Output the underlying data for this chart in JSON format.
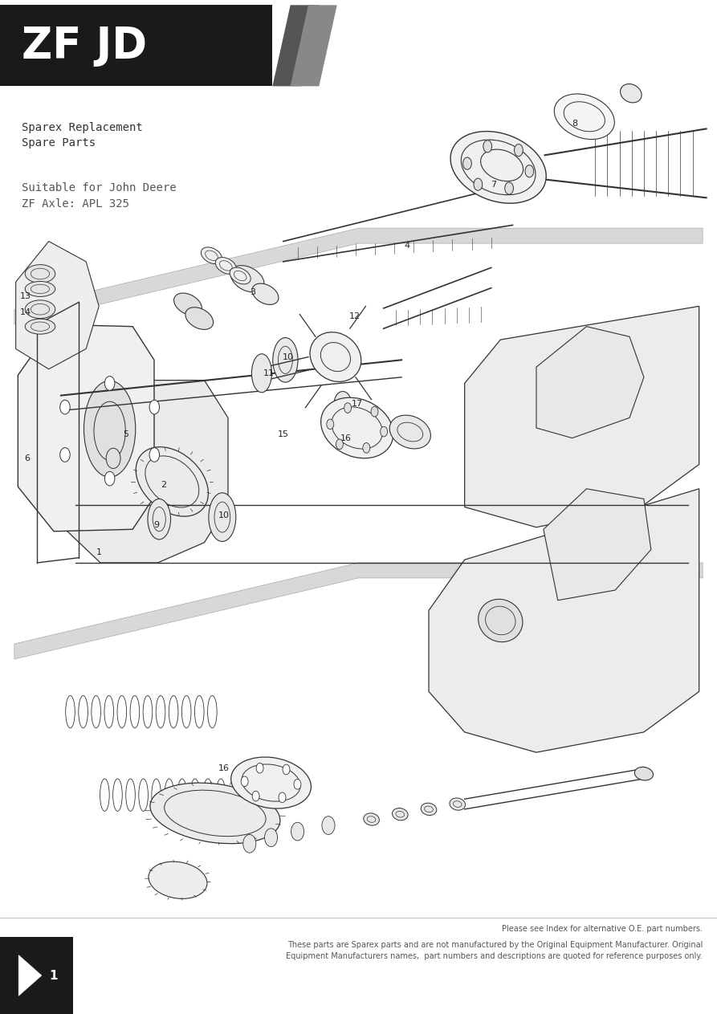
{
  "bg_color": "#ffffff",
  "header_bg": "#1a1a1a",
  "header_text": "ZF JD",
  "header_text_color": "#ffffff",
  "header_stripe1": "#555555",
  "header_stripe2": "#888888",
  "subtext1": "Sparex Replacement\nSpare Parts",
  "subtext2": "Suitable for John Deere\nZF Axle: APL 325",
  "footer_text1": "Please see Index for alternative O.E. part numbers.",
  "footer_text2": "These parts are Sparex parts and are not manufactured by the Original Equipment Manufacturer. Original\nEquipment Manufacturers names,  part numbers and descriptions are quoted for reference purposes only.",
  "page_number": "1",
  "diagram_line_color": "#333333",
  "figsize": [
    8.93,
    12.63
  ],
  "dpi": 100
}
